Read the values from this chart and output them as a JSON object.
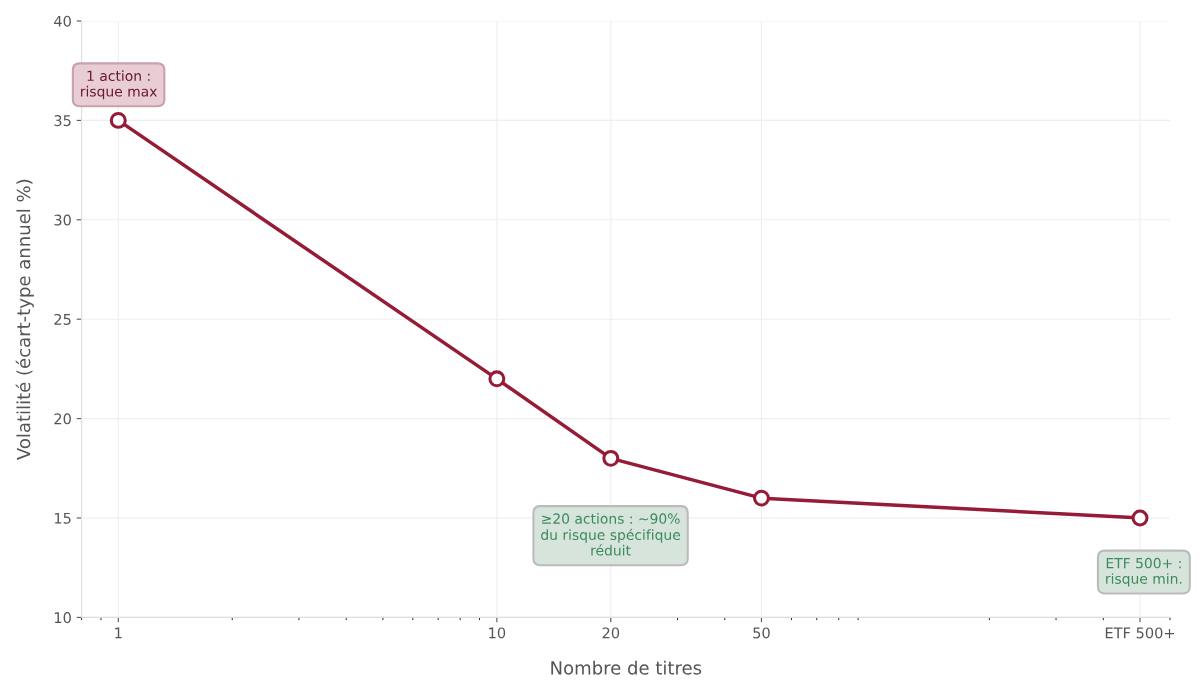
{
  "chart_data": {
    "type": "line",
    "xlabel": "Nombre de titres",
    "ylabel": "Volatilité (écart-type annuel %)",
    "x": [
      1,
      10,
      20,
      50,
      500
    ],
    "series": [
      {
        "color": "#961b36",
        "values": [
          35,
          22,
          18,
          16,
          15
        ]
      }
    ],
    "log": "x",
    "xlim": [
      0.8,
      600
    ],
    "xticks": [
      1,
      10,
      20,
      50,
      {
        "value": 500,
        "label": "ETF 500+"
      }
    ],
    "ylim": [
      10,
      40
    ],
    "yticks": [
      10,
      15,
      20,
      25,
      30,
      35,
      40
    ],
    "grid": true,
    "marker": "circle",
    "line_style": "solid",
    "annotations": [
      "1 action :\nrisque max",
      "≥20 actions : ~90%\ndu risque spécifique\nréduit",
      "ETF 500+ :\nrisque min."
    ]
  }
}
